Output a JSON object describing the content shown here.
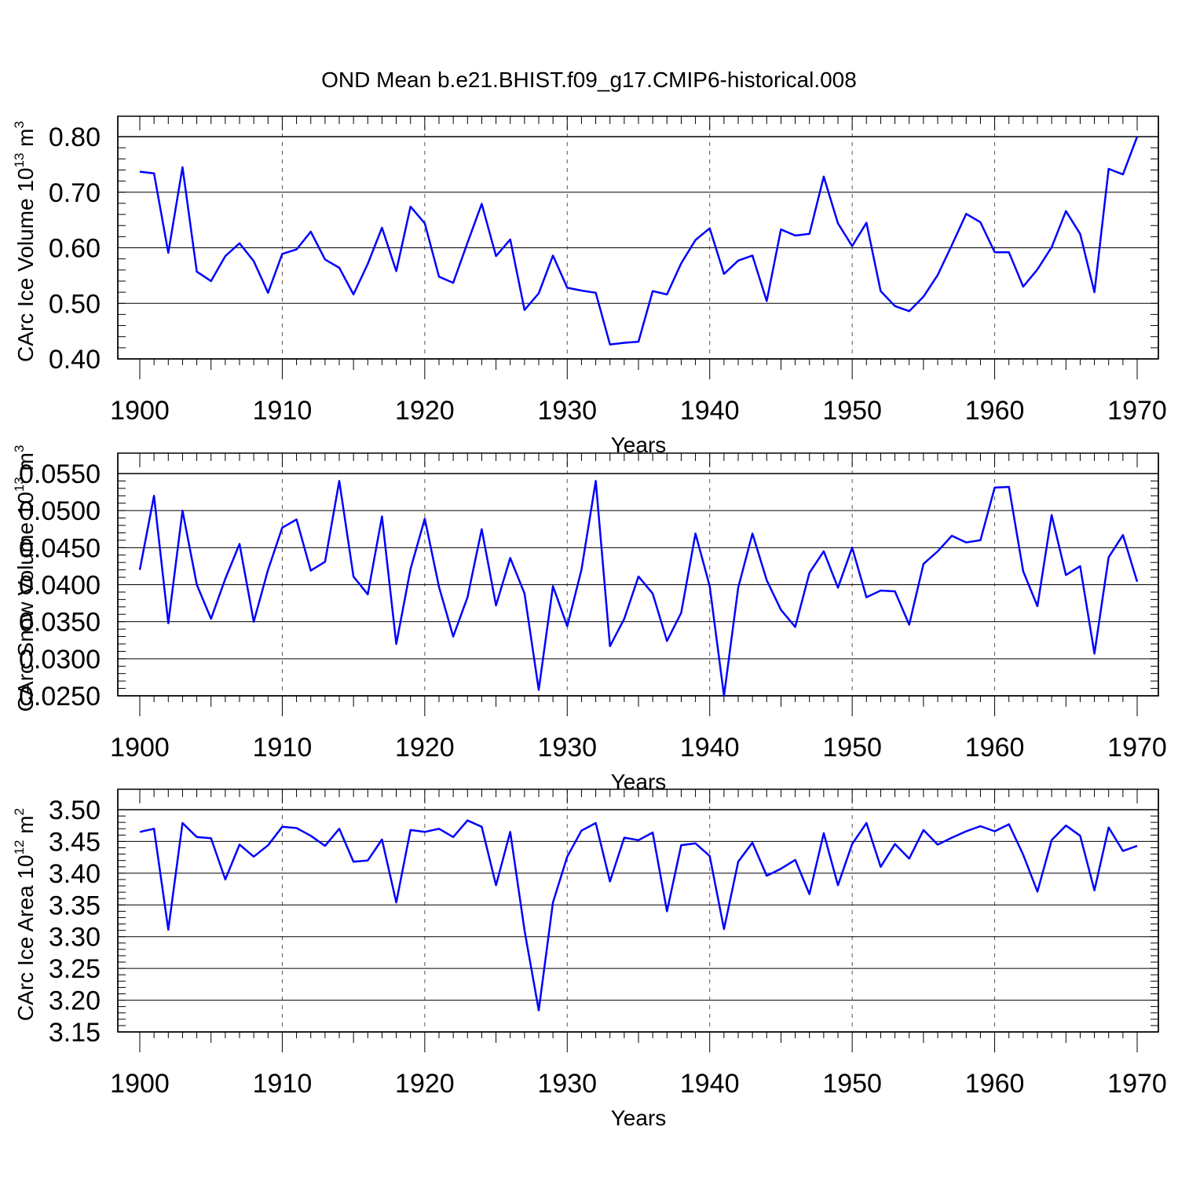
{
  "title": "OND Mean b.e21.BHIST.f09_g17.CMIP6-historical.008",
  "colors": {
    "line": "#0000ff",
    "frame": "#000000",
    "grid": "#555555"
  },
  "chart_data": [
    {
      "type": "line",
      "ylabel_main": "CArc Ice Volume 10",
      "ylabel_exp": "13",
      "ylabel_unit": "m",
      "ylabel_unit_exp": "3",
      "xlabel": "Years",
      "xlim": [
        1900,
        1970
      ],
      "ylim": [
        0.4,
        0.8
      ],
      "yticks": [
        0.4,
        0.5,
        0.6,
        0.7,
        0.8
      ],
      "ytick_labels": [
        "0.40",
        "0.50",
        "0.60",
        "0.70",
        "0.80"
      ],
      "xticks": [
        1900,
        1910,
        1920,
        1930,
        1940,
        1950,
        1960,
        1970
      ],
      "xtick_labels": [
        "1900",
        "1910",
        "1920",
        "1930",
        "1940",
        "1950",
        "1960",
        "1970"
      ],
      "x_start": 1900,
      "values": [
        0.737,
        0.734,
        0.591,
        0.745,
        0.557,
        0.54,
        0.585,
        0.608,
        0.576,
        0.519,
        0.589,
        0.597,
        0.629,
        0.579,
        0.564,
        0.516,
        0.571,
        0.636,
        0.558,
        0.674,
        0.644,
        0.548,
        0.537,
        0.609,
        0.679,
        0.585,
        0.615,
        0.488,
        0.518,
        0.586,
        0.528,
        0.523,
        0.519,
        0.426,
        0.429,
        0.431,
        0.522,
        0.516,
        0.572,
        0.614,
        0.635,
        0.553,
        0.577,
        0.586,
        0.504,
        0.633,
        0.622,
        0.625,
        0.728,
        0.644,
        0.603,
        0.645,
        0.522,
        0.495,
        0.486,
        0.512,
        0.551,
        0.605,
        0.661,
        0.646,
        0.592,
        0.592,
        0.53,
        0.561,
        0.601,
        0.666,
        0.625,
        0.52,
        0.742,
        0.732,
        0.8
      ]
    },
    {
      "type": "line",
      "ylabel_main": "CArc Snow Volume 10",
      "ylabel_exp": "13",
      "ylabel_unit": "m",
      "ylabel_unit_exp": "3",
      "xlabel": "Years",
      "xlim": [
        1900,
        1970
      ],
      "ylim": [
        0.025,
        0.055
      ],
      "yticks": [
        0.025,
        0.03,
        0.035,
        0.04,
        0.045,
        0.05,
        0.055
      ],
      "ytick_labels": [
        "0.0250",
        "0.0300",
        "0.0350",
        "0.0400",
        "0.0450",
        "0.0500",
        "0.0550"
      ],
      "xticks": [
        1900,
        1910,
        1920,
        1930,
        1940,
        1950,
        1960,
        1970
      ],
      "xtick_labels": [
        "1900",
        "1910",
        "1920",
        "1930",
        "1940",
        "1950",
        "1960",
        "1970"
      ],
      "x_start": 1900,
      "values": [
        0.042,
        0.052,
        0.0348,
        0.05,
        0.04,
        0.0354,
        0.0408,
        0.0455,
        0.035,
        0.042,
        0.0477,
        0.0488,
        0.0419,
        0.0431,
        0.054,
        0.0411,
        0.0387,
        0.0492,
        0.032,
        0.0421,
        0.0489,
        0.0397,
        0.033,
        0.0383,
        0.0475,
        0.0372,
        0.0436,
        0.0388,
        0.0258,
        0.0398,
        0.0344,
        0.042,
        0.054,
        0.0317,
        0.0354,
        0.0411,
        0.0388,
        0.0324,
        0.0362,
        0.0469,
        0.0398,
        0.025,
        0.0396,
        0.0469,
        0.0406,
        0.0366,
        0.0343,
        0.0416,
        0.0445,
        0.0396,
        0.045,
        0.0383,
        0.0392,
        0.0391,
        0.0346,
        0.0428,
        0.0445,
        0.0466,
        0.0457,
        0.046,
        0.0531,
        0.0532,
        0.0418,
        0.0371,
        0.0494,
        0.0413,
        0.0425,
        0.0307,
        0.0437,
        0.0467,
        0.0404
      ]
    },
    {
      "type": "line",
      "ylabel_main": "CArc Ice Area 10",
      "ylabel_exp": "12",
      "ylabel_unit": "m",
      "ylabel_unit_exp": "2",
      "xlabel": "Years",
      "xlim": [
        1900,
        1970
      ],
      "ylim": [
        3.15,
        3.5
      ],
      "yticks": [
        3.15,
        3.2,
        3.25,
        3.3,
        3.35,
        3.4,
        3.45,
        3.5
      ],
      "ytick_labels": [
        "3.15",
        "3.20",
        "3.25",
        "3.30",
        "3.35",
        "3.40",
        "3.45",
        "3.50"
      ],
      "xticks": [
        1900,
        1910,
        1920,
        1930,
        1940,
        1950,
        1960,
        1970
      ],
      "xtick_labels": [
        "1900",
        "1910",
        "1920",
        "1930",
        "1940",
        "1950",
        "1960",
        "1970"
      ],
      "x_start": 1900,
      "values": [
        3.465,
        3.47,
        3.311,
        3.479,
        3.457,
        3.455,
        3.39,
        3.445,
        3.426,
        3.444,
        3.473,
        3.471,
        3.459,
        3.443,
        3.47,
        3.418,
        3.42,
        3.453,
        3.354,
        3.468,
        3.465,
        3.47,
        3.457,
        3.483,
        3.473,
        3.381,
        3.465,
        3.31,
        3.184,
        3.354,
        3.426,
        3.467,
        3.479,
        3.387,
        3.456,
        3.452,
        3.464,
        3.34,
        3.444,
        3.447,
        3.427,
        3.312,
        3.418,
        3.448,
        3.396,
        3.407,
        3.421,
        3.367,
        3.463,
        3.381,
        3.446,
        3.479,
        3.41,
        3.446,
        3.423,
        3.468,
        3.445,
        3.456,
        3.466,
        3.474,
        3.466,
        3.477,
        3.429,
        3.371,
        3.452,
        3.475,
        3.459,
        3.373,
        3.472,
        3.435,
        3.443
      ]
    }
  ]
}
